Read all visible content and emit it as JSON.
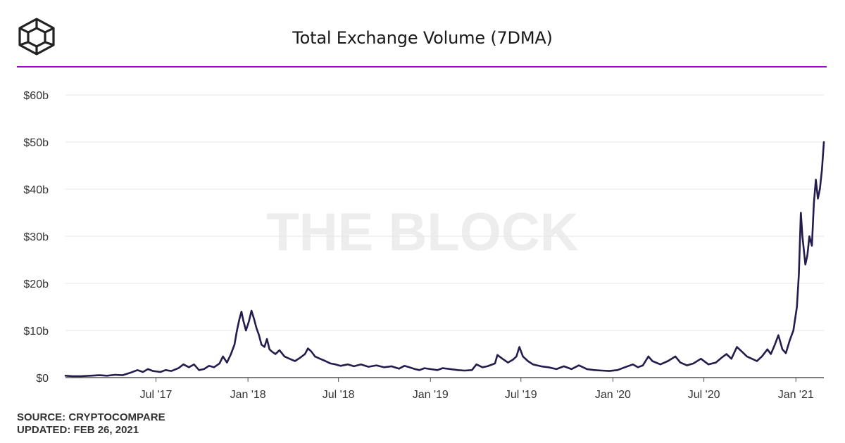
{
  "header": {
    "logo_icon": "the-block-cube-icon",
    "title": "Total Exchange Volume (7DMA)",
    "rule_color": "#a400d6"
  },
  "watermark": "THE BLOCK",
  "footer": {
    "source": "SOURCE: CRYPTOCOMPARE",
    "updated": "UPDATED: FEB 26, 2021"
  },
  "chart_data": {
    "type": "line",
    "title": "Total Exchange Volume (7DMA)",
    "xlabel": "",
    "ylabel": "",
    "line_color": "#251c4d",
    "grid": true,
    "legend": "none",
    "ylim": [
      0,
      60
    ],
    "y_ticks": [
      {
        "value": 0,
        "label": "$0"
      },
      {
        "value": 10,
        "label": "$10b"
      },
      {
        "value": 20,
        "label": "$20b"
      },
      {
        "value": 30,
        "label": "$30b"
      },
      {
        "value": 40,
        "label": "$40b"
      },
      {
        "value": 50,
        "label": "$50b"
      },
      {
        "value": 60,
        "label": "$60b"
      }
    ],
    "x_range": [
      "2017-01-01",
      "2021-02-26"
    ],
    "x_ticks": [
      {
        "date": "2017-07-01",
        "label": "Jul '17"
      },
      {
        "date": "2018-01-01",
        "label": "Jan '18"
      },
      {
        "date": "2018-07-01",
        "label": "Jul '18"
      },
      {
        "date": "2019-01-01",
        "label": "Jan '19"
      },
      {
        "date": "2019-07-01",
        "label": "Jul '19"
      },
      {
        "date": "2020-01-01",
        "label": "Jan '20"
      },
      {
        "date": "2020-07-01",
        "label": "Jul '20"
      },
      {
        "date": "2021-01-01",
        "label": "Jan '21"
      }
    ],
    "series": [
      {
        "name": "Total Exchange Volume (7DMA)",
        "unit": "USD billions",
        "points": [
          [
            "2017-01-01",
            0.4
          ],
          [
            "2017-01-15",
            0.3
          ],
          [
            "2017-02-01",
            0.3
          ],
          [
            "2017-02-20",
            0.4
          ],
          [
            "2017-03-10",
            0.5
          ],
          [
            "2017-03-25",
            0.4
          ],
          [
            "2017-04-10",
            0.6
          ],
          [
            "2017-04-25",
            0.5
          ],
          [
            "2017-05-10",
            1.0
          ],
          [
            "2017-05-25",
            1.6
          ],
          [
            "2017-06-05",
            1.2
          ],
          [
            "2017-06-15",
            1.8
          ],
          [
            "2017-06-25",
            1.4
          ],
          [
            "2017-07-10",
            1.2
          ],
          [
            "2017-07-20",
            1.6
          ],
          [
            "2017-08-01",
            1.4
          ],
          [
            "2017-08-15",
            2.0
          ],
          [
            "2017-08-25",
            2.8
          ],
          [
            "2017-09-05",
            2.2
          ],
          [
            "2017-09-15",
            2.8
          ],
          [
            "2017-09-25",
            1.6
          ],
          [
            "2017-10-05",
            1.8
          ],
          [
            "2017-10-15",
            2.5
          ],
          [
            "2017-10-25",
            2.2
          ],
          [
            "2017-11-05",
            3.0
          ],
          [
            "2017-11-12",
            4.5
          ],
          [
            "2017-11-20",
            3.2
          ],
          [
            "2017-11-28",
            5.0
          ],
          [
            "2017-12-05",
            7.0
          ],
          [
            "2017-12-10",
            10.0
          ],
          [
            "2017-12-15",
            12.5
          ],
          [
            "2017-12-19",
            14.0
          ],
          [
            "2017-12-23",
            12.0
          ],
          [
            "2017-12-28",
            10.0
          ],
          [
            "2018-01-03",
            12.0
          ],
          [
            "2018-01-08",
            14.2
          ],
          [
            "2018-01-13",
            12.5
          ],
          [
            "2018-01-18",
            10.5
          ],
          [
            "2018-01-23",
            9.0
          ],
          [
            "2018-01-28",
            7.0
          ],
          [
            "2018-02-03",
            6.5
          ],
          [
            "2018-02-08",
            8.2
          ],
          [
            "2018-02-13",
            6.0
          ],
          [
            "2018-02-18",
            5.5
          ],
          [
            "2018-02-25",
            5.0
          ],
          [
            "2018-03-05",
            5.8
          ],
          [
            "2018-03-15",
            4.5
          ],
          [
            "2018-03-25",
            4.0
          ],
          [
            "2018-04-05",
            3.5
          ],
          [
            "2018-04-15",
            4.2
          ],
          [
            "2018-04-25",
            5.0
          ],
          [
            "2018-05-01",
            6.2
          ],
          [
            "2018-05-08",
            5.5
          ],
          [
            "2018-05-15",
            4.5
          ],
          [
            "2018-05-25",
            4.0
          ],
          [
            "2018-06-05",
            3.5
          ],
          [
            "2018-06-15",
            3.0
          ],
          [
            "2018-06-25",
            2.8
          ],
          [
            "2018-07-05",
            2.5
          ],
          [
            "2018-07-20",
            2.8
          ],
          [
            "2018-08-01",
            2.4
          ],
          [
            "2018-08-15",
            2.8
          ],
          [
            "2018-08-30",
            2.3
          ],
          [
            "2018-09-15",
            2.6
          ],
          [
            "2018-09-30",
            2.2
          ],
          [
            "2018-10-15",
            2.4
          ],
          [
            "2018-10-30",
            1.9
          ],
          [
            "2018-11-10",
            2.5
          ],
          [
            "2018-11-20",
            2.2
          ],
          [
            "2018-12-01",
            1.8
          ],
          [
            "2018-12-10",
            1.6
          ],
          [
            "2018-12-20",
            2.0
          ],
          [
            "2019-01-01",
            1.8
          ],
          [
            "2019-01-15",
            1.6
          ],
          [
            "2019-01-25",
            2.0
          ],
          [
            "2019-02-10",
            1.8
          ],
          [
            "2019-02-25",
            1.6
          ],
          [
            "2019-03-10",
            1.5
          ],
          [
            "2019-03-25",
            1.6
          ],
          [
            "2019-04-03",
            2.8
          ],
          [
            "2019-04-15",
            2.2
          ],
          [
            "2019-04-25",
            2.4
          ],
          [
            "2019-05-10",
            3.0
          ],
          [
            "2019-05-15",
            4.8
          ],
          [
            "2019-05-25",
            4.0
          ],
          [
            "2019-06-05",
            3.2
          ],
          [
            "2019-06-15",
            3.8
          ],
          [
            "2019-06-22",
            4.5
          ],
          [
            "2019-06-28",
            6.5
          ],
          [
            "2019-07-05",
            4.5
          ],
          [
            "2019-07-15",
            3.5
          ],
          [
            "2019-07-25",
            2.8
          ],
          [
            "2019-08-10",
            2.4
          ],
          [
            "2019-08-25",
            2.2
          ],
          [
            "2019-09-10",
            1.8
          ],
          [
            "2019-09-25",
            2.4
          ],
          [
            "2019-10-10",
            1.8
          ],
          [
            "2019-10-25",
            2.6
          ],
          [
            "2019-11-10",
            1.8
          ],
          [
            "2019-11-25",
            1.6
          ],
          [
            "2019-12-10",
            1.5
          ],
          [
            "2019-12-25",
            1.4
          ],
          [
            "2020-01-10",
            1.6
          ],
          [
            "2020-01-25",
            2.2
          ],
          [
            "2020-02-10",
            2.8
          ],
          [
            "2020-02-20",
            2.2
          ],
          [
            "2020-03-01",
            2.6
          ],
          [
            "2020-03-12",
            4.5
          ],
          [
            "2020-03-20",
            3.5
          ],
          [
            "2020-04-05",
            2.8
          ],
          [
            "2020-04-20",
            3.5
          ],
          [
            "2020-05-05",
            4.5
          ],
          [
            "2020-05-15",
            3.2
          ],
          [
            "2020-05-28",
            2.6
          ],
          [
            "2020-06-10",
            3.0
          ],
          [
            "2020-06-25",
            4.0
          ],
          [
            "2020-07-10",
            2.8
          ],
          [
            "2020-07-25",
            3.2
          ],
          [
            "2020-08-05",
            4.2
          ],
          [
            "2020-08-15",
            5.0
          ],
          [
            "2020-08-25",
            4.0
          ],
          [
            "2020-09-05",
            6.5
          ],
          [
            "2020-09-15",
            5.5
          ],
          [
            "2020-09-25",
            4.5
          ],
          [
            "2020-10-05",
            4.0
          ],
          [
            "2020-10-15",
            3.5
          ],
          [
            "2020-10-25",
            4.5
          ],
          [
            "2020-11-05",
            6.0
          ],
          [
            "2020-11-12",
            5.0
          ],
          [
            "2020-11-20",
            7.0
          ],
          [
            "2020-11-27",
            9.0
          ],
          [
            "2020-12-05",
            6.0
          ],
          [
            "2020-12-12",
            5.2
          ],
          [
            "2020-12-20",
            8.0
          ],
          [
            "2020-12-27",
            10.0
          ],
          [
            "2021-01-03",
            15.0
          ],
          [
            "2021-01-07",
            22.0
          ],
          [
            "2021-01-11",
            35.0
          ],
          [
            "2021-01-14",
            30.0
          ],
          [
            "2021-01-17",
            27.0
          ],
          [
            "2021-01-20",
            24.0
          ],
          [
            "2021-01-24",
            26.0
          ],
          [
            "2021-01-28",
            30.0
          ],
          [
            "2021-02-02",
            28.0
          ],
          [
            "2021-02-06",
            37.0
          ],
          [
            "2021-02-10",
            42.0
          ],
          [
            "2021-02-14",
            38.0
          ],
          [
            "2021-02-18",
            40.0
          ],
          [
            "2021-02-22",
            44.0
          ],
          [
            "2021-02-26",
            50.0
          ]
        ]
      }
    ]
  }
}
